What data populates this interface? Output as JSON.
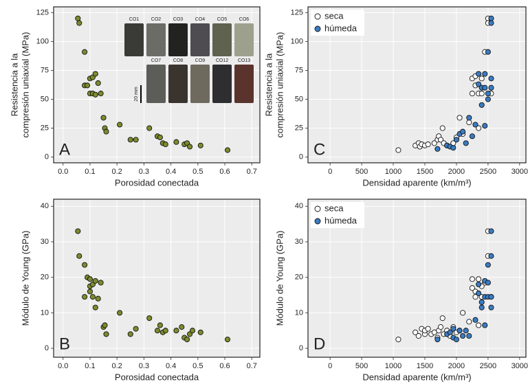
{
  "chart_data": [
    {
      "type": "scatter",
      "panel_label": "A",
      "xlabel": "Porosidad conectada",
      "ylabel": [
        "Resistencia a la",
        "compresión uniaxial (MPa)"
      ],
      "xlim": [
        -0.035,
        0.73
      ],
      "ylim": [
        -5,
        130
      ],
      "xticks": [
        {
          "value": 0,
          "label": "0.0"
        },
        0.1,
        0.2,
        0.3,
        0.4,
        0.5,
        0.6,
        0.7
      ],
      "yticks": [
        0,
        25,
        50,
        75,
        100,
        125
      ],
      "grid": true,
      "color": "#7d8a2e",
      "inset_labels": [
        "CO1",
        "CO2",
        "CO3",
        "CO4",
        "CO5",
        "CO6",
        "CO7",
        "CO8",
        "CO9",
        "CO12",
        "CO13"
      ],
      "scale_label": "20 mm",
      "x": [
        0.055,
        0.06,
        0.08,
        0.08,
        0.09,
        0.1,
        0.11,
        0.12,
        0.1,
        0.11,
        0.12,
        0.13,
        0.14,
        0.15,
        0.155,
        0.16,
        0.21,
        0.25,
        0.27,
        0.32,
        0.35,
        0.36,
        0.37,
        0.38,
        0.42,
        0.45,
        0.46,
        0.47,
        0.51,
        0.61
      ],
      "values": [
        120,
        116,
        91,
        62,
        62,
        68,
        69,
        72,
        55,
        55,
        54,
        64,
        55,
        34,
        25,
        22,
        28,
        15,
        15,
        25,
        18,
        17,
        12,
        11,
        13,
        11,
        12,
        9,
        10,
        6
      ]
    },
    {
      "type": "scatter",
      "panel_label": "B",
      "xlabel": "Porosidad conectada",
      "ylabel": [
        "Módulo de Young (GPa)"
      ],
      "xlim": [
        -0.035,
        0.73
      ],
      "ylim": [
        -2.5,
        42
      ],
      "xticks": [
        {
          "value": 0,
          "label": "0.0"
        },
        0.1,
        0.2,
        0.3,
        0.4,
        0.5,
        0.6,
        0.7
      ],
      "yticks": [
        0,
        10,
        20,
        30,
        40
      ],
      "grid": true,
      "color": "#7d8a2e",
      "x": [
        0.055,
        0.06,
        0.08,
        0.09,
        0.1,
        0.08,
        0.1,
        0.1,
        0.11,
        0.12,
        0.11,
        0.12,
        0.13,
        0.14,
        0.15,
        0.155,
        0.16,
        0.21,
        0.25,
        0.27,
        0.32,
        0.35,
        0.36,
        0.37,
        0.38,
        0.42,
        0.44,
        0.45,
        0.46,
        0.47,
        0.48,
        0.51,
        0.61
      ],
      "values": [
        33,
        26,
        23.5,
        20,
        19.5,
        14.5,
        16,
        17.5,
        18,
        19,
        14.5,
        11.5,
        14,
        18.5,
        6,
        6.5,
        4,
        10,
        4,
        5.5,
        8.5,
        5,
        6.5,
        4.5,
        5,
        5,
        6,
        3,
        2.5,
        4,
        5,
        4.5,
        2.5
      ]
    },
    {
      "type": "scatter",
      "panel_label": "C",
      "xlabel": "Densidad aparente (km/m³)",
      "ylabel": [
        "Resistencia a la",
        "compresión uniaxial (MPa)"
      ],
      "xlim": [
        -350,
        3100
      ],
      "ylim": [
        -5,
        130
      ],
      "xticks": [
        0,
        500,
        1000,
        1500,
        2000,
        2500,
        3000
      ],
      "yticks": [
        0,
        25,
        50,
        75,
        100,
        125
      ],
      "grid": true,
      "legend": "top-left",
      "series": [
        {
          "name": "seca",
          "color": "#ffffff",
          "x": [
            1080,
            1350,
            1400,
            1420,
            1450,
            1500,
            1550,
            1650,
            1700,
            1720,
            1750,
            1780,
            1800,
            1850,
            1950,
            2000,
            2050,
            2100,
            2200,
            2250,
            2250,
            2300,
            2300,
            2350,
            2350,
            2400,
            2400,
            2450,
            2500,
            2500,
            2550
          ],
          "values": [
            6,
            10,
            12,
            9,
            11,
            10,
            11,
            12,
            15,
            18,
            15,
            25,
            12,
            10,
            12,
            17,
            34,
            20,
            30,
            68,
            55,
            70,
            62,
            25,
            55,
            68,
            55,
            91,
            120,
            116,
            55
          ]
        },
        {
          "name": "húmeda",
          "color": "#3a7cc3",
          "x": [
            1700,
            1850,
            1900,
            1950,
            2000,
            2050,
            2100,
            2150,
            2200,
            2250,
            2300,
            2350,
            2350,
            2400,
            2400,
            2450,
            2450,
            2450,
            2500,
            2500,
            2500,
            2550,
            2550,
            2550,
            2550
          ],
          "values": [
            7,
            10,
            9,
            8,
            15,
            20,
            22,
            12,
            34,
            18,
            28,
            63,
            72,
            45,
            60,
            60,
            27,
            72,
            55,
            50,
            91,
            120,
            116,
            68,
            60
          ]
        }
      ]
    },
    {
      "type": "scatter",
      "panel_label": "D",
      "xlabel": "Densidad aparente (km/m³)",
      "ylabel": [
        "Módulo de Young (GPa)"
      ],
      "xlim": [
        -350,
        3100
      ],
      "ylim": [
        -2.5,
        42
      ],
      "xticks": [
        0,
        500,
        1000,
        1500,
        2000,
        2500,
        3000
      ],
      "yticks": [
        0,
        10,
        20,
        30,
        40
      ],
      "grid": true,
      "legend": "top-left",
      "series": [
        {
          "name": "seca",
          "color": "#ffffff",
          "x": [
            1080,
            1350,
            1400,
            1450,
            1500,
            1500,
            1550,
            1600,
            1650,
            1700,
            1720,
            1750,
            1780,
            1800,
            1850,
            1900,
            1950,
            2000,
            2050,
            2100,
            2200,
            2250,
            2250,
            2300,
            2300,
            2350,
            2350,
            2400,
            2400,
            2450,
            2500,
            2500,
            2550
          ],
          "values": [
            2.5,
            4.5,
            3.5,
            5.5,
            4,
            5,
            5.5,
            4,
            4.5,
            3,
            5,
            6,
            8.5,
            4,
            5,
            3.5,
            6,
            4.5,
            5,
            10,
            7.5,
            17,
            19.5,
            14.5,
            16,
            6.5,
            19.5,
            17.5,
            14.5,
            18.5,
            33,
            26,
            14.5
          ]
        },
        {
          "name": "húmeda",
          "color": "#3a7cc3",
          "x": [
            1700,
            1850,
            1900,
            1950,
            1950,
            2000,
            2050,
            2100,
            2150,
            2200,
            2300,
            2350,
            2350,
            2400,
            2400,
            2450,
            2450,
            2450,
            2500,
            2500,
            2500,
            2550,
            2550,
            2550,
            2550
          ],
          "values": [
            2.5,
            4,
            4.5,
            3,
            5.5,
            2.5,
            5,
            3.5,
            5,
            3.5,
            8,
            18,
            15.5,
            11.5,
            13,
            6.5,
            14.5,
            19,
            14.5,
            18.5,
            23.5,
            33,
            26,
            11.5,
            14.5
          ]
        }
      ]
    }
  ]
}
